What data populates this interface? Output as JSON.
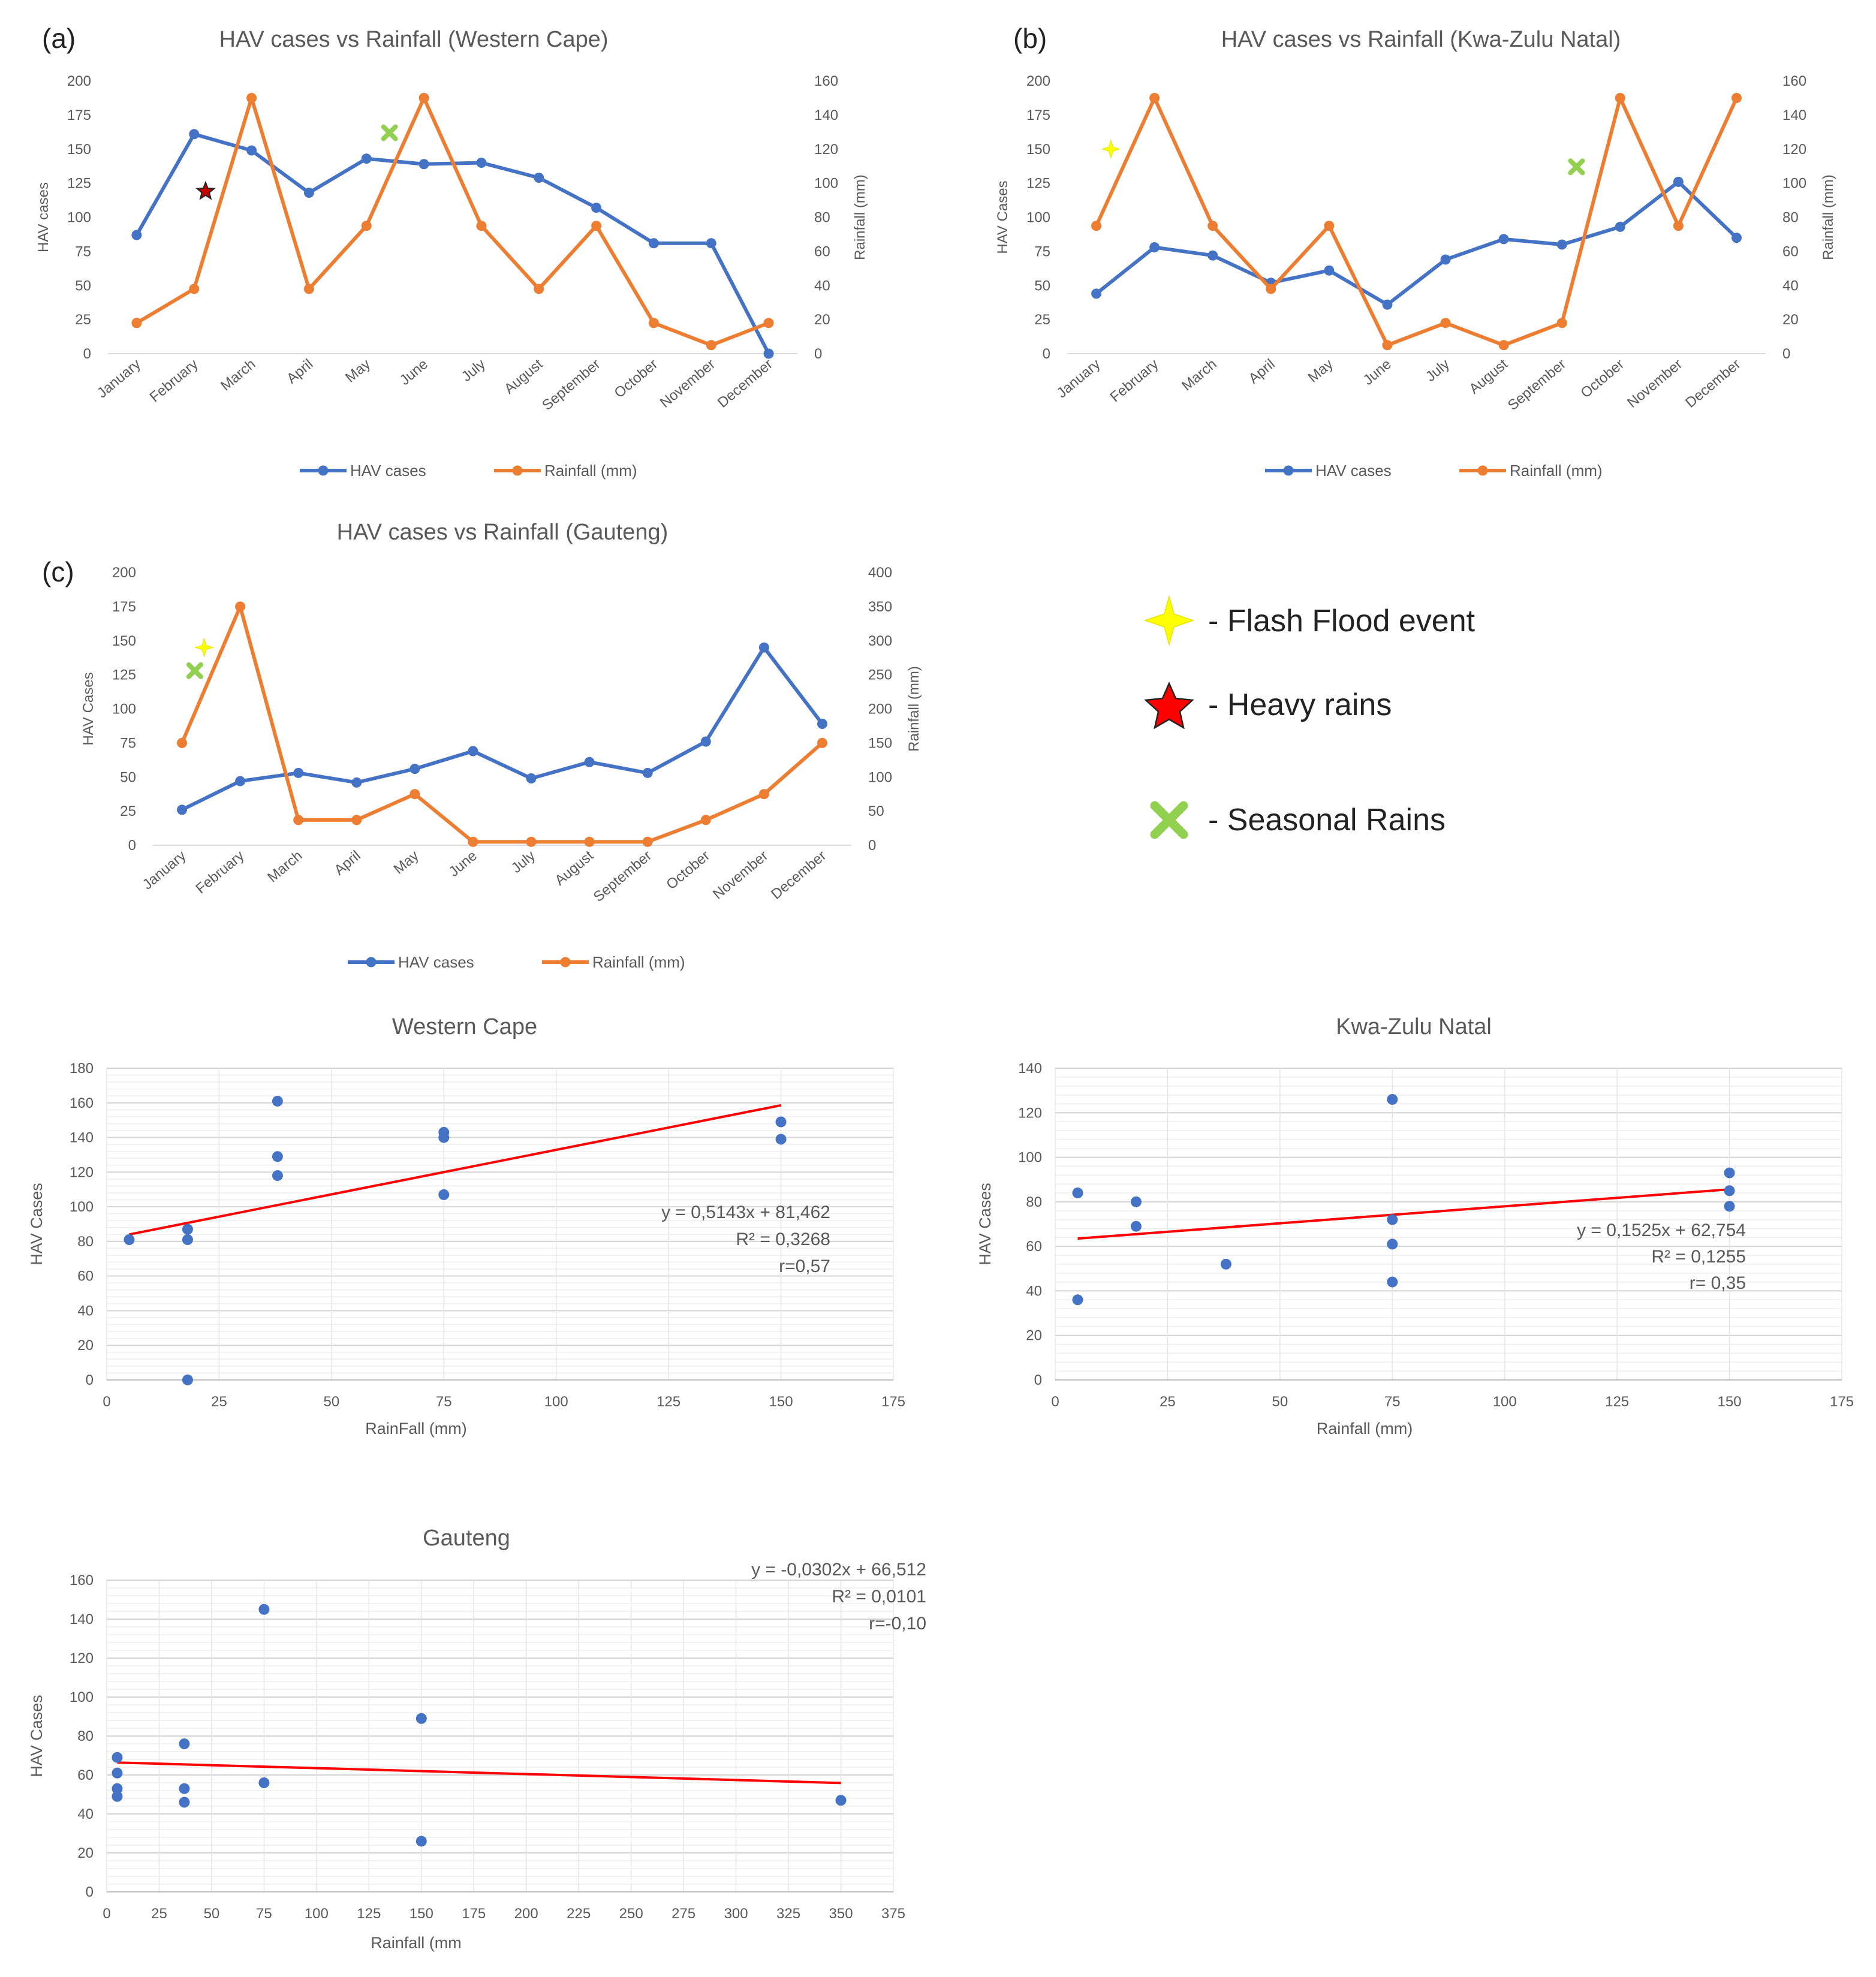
{
  "panel_labels": [
    "(a)",
    "(b)",
    "(c)"
  ],
  "legend_key": {
    "flash_flood": "- Flash Flood event",
    "heavy_rains": "- Heavy rains",
    "seasonal_rains": "- Seasonal Rains"
  },
  "colors": {
    "hav": "#4472C4",
    "rain": "#ED7D31",
    "trend": "#FF0000",
    "flash": "#FFFF00",
    "star": "#FF0000",
    "cross": "#92D050",
    "grid": "#D9D9D9",
    "text": "#595959"
  },
  "chart_data": [
    {
      "id": "a",
      "type": "line",
      "title": "HAV cases vs Rainfall (Western Cape)",
      "ylabel": "HAV cases",
      "y2label": "Rainfall (mm)",
      "ylim": [
        0,
        200
      ],
      "yticks": [
        0,
        25,
        50,
        75,
        100,
        125,
        150,
        175,
        200
      ],
      "y2lim": [
        0,
        160
      ],
      "y2ticks": [
        0,
        20,
        40,
        60,
        80,
        100,
        120,
        140,
        160
      ],
      "categories": [
        "January",
        "February",
        "March",
        "April",
        "May",
        "June",
        "July",
        "August",
        "September",
        "October",
        "November",
        "December"
      ],
      "series": [
        {
          "name": "HAV cases",
          "axis": "left",
          "values": [
            87,
            161,
            149,
            118,
            143,
            139,
            140,
            129,
            107,
            81,
            81,
            0
          ]
        },
        {
          "name": "Rainfall (mm)",
          "axis": "right",
          "values": [
            18,
            38,
            150,
            38,
            75,
            150,
            75,
            38,
            75,
            18,
            5,
            18
          ]
        }
      ],
      "markers": [
        {
          "kind": "star",
          "x": 1.2,
          "y": 119
        },
        {
          "kind": "cross",
          "x": 4.4,
          "y": 162
        }
      ]
    },
    {
      "id": "b",
      "type": "line",
      "title": "HAV cases vs Rainfall (Kwa-Zulu Natal)",
      "ylabel": "HAV Cases",
      "y2label": "Rainfall (mm)",
      "ylim": [
        0,
        200
      ],
      "yticks": [
        0,
        25,
        50,
        75,
        100,
        125,
        150,
        175,
        200
      ],
      "y2lim": [
        0,
        160
      ],
      "y2ticks": [
        0,
        20,
        40,
        60,
        80,
        100,
        120,
        140,
        160
      ],
      "categories": [
        "January",
        "February",
        "March",
        "April",
        "May",
        "June",
        "July",
        "August",
        "September",
        "October",
        "November",
        "December"
      ],
      "series": [
        {
          "name": "HAV cases",
          "axis": "left",
          "values": [
            44,
            78,
            72,
            52,
            61,
            36,
            69,
            84,
            80,
            93,
            126,
            85
          ]
        },
        {
          "name": "Rainfall (mm)",
          "axis": "right",
          "values": [
            75,
            150,
            75,
            38,
            75,
            5,
            18,
            5,
            18,
            150,
            75,
            150
          ]
        }
      ],
      "markers": [
        {
          "kind": "flash",
          "x": 0.25,
          "y": 150
        },
        {
          "kind": "cross",
          "x": 8.25,
          "y": 137
        }
      ]
    },
    {
      "id": "c",
      "type": "line",
      "title": "HAV cases vs Rainfall (Gauteng)",
      "ylabel": "HAV Cases",
      "y2label": "Rainfall (mm)",
      "ylim": [
        0,
        200
      ],
      "yticks": [
        0,
        25,
        50,
        75,
        100,
        125,
        150,
        175,
        200
      ],
      "y2lim": [
        0,
        400
      ],
      "y2ticks": [
        0,
        50,
        100,
        150,
        200,
        250,
        300,
        350,
        400
      ],
      "categories": [
        "January",
        "February",
        "March",
        "April",
        "May",
        "June",
        "July",
        "August",
        "September",
        "October",
        "November",
        "December"
      ],
      "series": [
        {
          "name": "HAV cases",
          "axis": "left",
          "values": [
            26,
            47,
            53,
            46,
            56,
            69,
            49,
            61,
            53,
            76,
            145,
            89
          ]
        },
        {
          "name": "Rainfall (mm)",
          "axis": "right",
          "values": [
            150,
            350,
            37,
            37,
            75,
            5,
            5,
            5,
            5,
            37,
            75,
            150
          ]
        }
      ],
      "markers": [
        {
          "kind": "flash",
          "x": 0.38,
          "y": 145
        },
        {
          "kind": "cross",
          "x": 0.22,
          "y": 128
        }
      ]
    },
    {
      "id": "d",
      "type": "scatter",
      "title": "Western Cape",
      "xlabel": "RainFall (mm)",
      "ylabel": "HAV Cases",
      "xlim": [
        0,
        175
      ],
      "xticks": [
        0,
        25,
        50,
        75,
        100,
        125,
        150,
        175
      ],
      "ylim": [
        0,
        180
      ],
      "yticks": [
        0,
        20,
        40,
        60,
        80,
        100,
        120,
        140,
        160,
        180
      ],
      "points": [
        [
          5,
          81
        ],
        [
          18,
          87
        ],
        [
          18,
          81
        ],
        [
          18,
          0
        ],
        [
          38,
          161
        ],
        [
          38,
          129
        ],
        [
          38,
          118
        ],
        [
          75,
          143
        ],
        [
          75,
          140
        ],
        [
          75,
          107
        ],
        [
          150,
          149
        ],
        [
          150,
          139
        ]
      ],
      "trend": {
        "x": [
          5,
          150
        ],
        "y": [
          84,
          158.6
        ]
      },
      "equation": [
        "y = 0,5143x + 81,462",
        "R² = 0,3268",
        "r=0,57"
      ]
    },
    {
      "id": "e",
      "type": "scatter",
      "title": "Kwa-Zulu Natal",
      "xlabel": "Rainfall (mm)",
      "ylabel": "HAV Cases",
      "xlim": [
        0,
        175
      ],
      "xticks": [
        0,
        25,
        50,
        75,
        100,
        125,
        150,
        175
      ],
      "ylim": [
        0,
        140
      ],
      "yticks": [
        0,
        20,
        40,
        60,
        80,
        100,
        120,
        140
      ],
      "points": [
        [
          5,
          84
        ],
        [
          5,
          36
        ],
        [
          18,
          80
        ],
        [
          18,
          69
        ],
        [
          38,
          52
        ],
        [
          75,
          126
        ],
        [
          75,
          72
        ],
        [
          75,
          61
        ],
        [
          75,
          44
        ],
        [
          150,
          93
        ],
        [
          150,
          85
        ],
        [
          150,
          78
        ]
      ],
      "trend": {
        "x": [
          5,
          150
        ],
        "y": [
          63.5,
          85.6
        ]
      },
      "equation": [
        "y = 0,1525x + 62,754",
        "R² = 0,1255",
        "r= 0,35"
      ]
    },
    {
      "id": "f",
      "type": "scatter",
      "title": "Gauteng",
      "xlabel": "Rainfall (mm",
      "ylabel": "HAV Cases",
      "xlim": [
        0,
        375
      ],
      "xticks": [
        0,
        25,
        50,
        75,
        100,
        125,
        150,
        175,
        200,
        225,
        250,
        275,
        300,
        325,
        350,
        375
      ],
      "ylim": [
        0,
        160
      ],
      "yticks": [
        0,
        20,
        40,
        60,
        80,
        100,
        120,
        140,
        160
      ],
      "points": [
        [
          5,
          69
        ],
        [
          5,
          61
        ],
        [
          5,
          53
        ],
        [
          5,
          49
        ],
        [
          37,
          76
        ],
        [
          37,
          53
        ],
        [
          37,
          46
        ],
        [
          75,
          145
        ],
        [
          75,
          56
        ],
        [
          150,
          89
        ],
        [
          150,
          26
        ],
        [
          350,
          47
        ]
      ],
      "trend": {
        "x": [
          5,
          350
        ],
        "y": [
          66.4,
          55.9
        ]
      },
      "equation": [
        "y = -0,0302x + 66,512",
        "R² = 0,0101",
        "r=-0,10"
      ]
    }
  ]
}
